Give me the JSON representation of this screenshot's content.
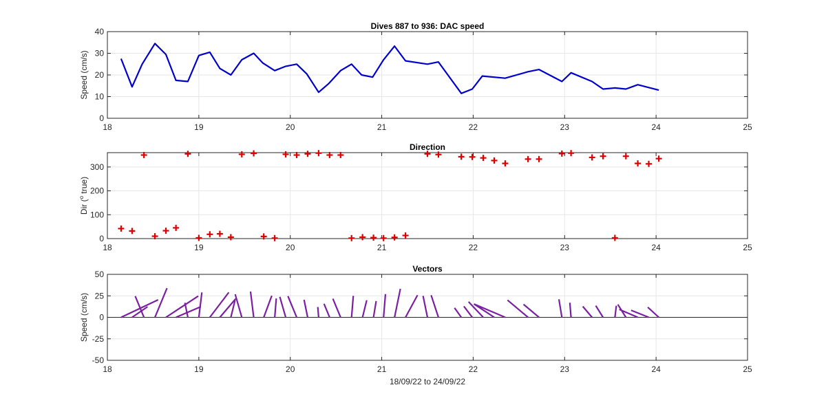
{
  "figure": {
    "xlabel": "18/09/22 to 24/09/22"
  },
  "colors": {
    "speed_line": "#0000cc",
    "direction_marker": "#dd0000",
    "vector": "#7b1fa2",
    "grid": "#e6e6e6",
    "axes": "#262626"
  },
  "chart_data": [
    {
      "type": "line",
      "title": "Dives 887 to 936: DAC speed",
      "xlabel": "",
      "ylabel": "Speed (cm/s)",
      "xlim": [
        18,
        25
      ],
      "ylim": [
        0,
        40
      ],
      "xticks": [
        18,
        19,
        20,
        21,
        22,
        23,
        24,
        25
      ],
      "yticks": [
        0,
        10,
        20,
        30,
        40
      ],
      "grid": true,
      "series": [
        {
          "x": [
            18.15,
            18.27,
            18.38,
            18.52,
            18.64,
            18.75,
            18.88,
            19.0,
            19.12,
            19.23,
            19.35,
            19.47,
            19.6,
            19.7,
            19.83,
            19.95,
            20.07,
            20.18,
            20.31,
            20.42,
            20.55,
            20.67,
            20.78,
            20.9,
            21.02,
            21.14,
            21.26,
            21.5,
            21.62,
            21.87,
            21.99,
            22.1,
            22.35,
            22.6,
            22.72,
            22.97,
            23.07,
            23.3,
            23.42,
            23.55,
            23.67,
            23.8,
            24.03
          ],
          "values": [
            27.5,
            14.5,
            25,
            34.5,
            29.5,
            17.5,
            17,
            29,
            30.5,
            23,
            20,
            27,
            30,
            25.5,
            22,
            24,
            25,
            20.5,
            12,
            16,
            22,
            25,
            20,
            19,
            27,
            33.3,
            26.5,
            25,
            26,
            11.5,
            13.5,
            19.5,
            18.5,
            21.5,
            22.5,
            17,
            21,
            17,
            13.5,
            14,
            13.5,
            15.5,
            13
          ]
        }
      ]
    },
    {
      "type": "scatter",
      "title": "Direction",
      "xlabel": "",
      "ylabel_prefix": "Dir (",
      "ylabel_sup": "o",
      "ylabel_suffix": " true)",
      "xlim": [
        18,
        25
      ],
      "ylim": [
        0,
        360
      ],
      "xticks": [
        18,
        19,
        20,
        21,
        22,
        23,
        24,
        25
      ],
      "yticks": [
        0,
        100,
        200,
        300
      ],
      "grid": true,
      "marker": "+",
      "series": [
        {
          "x": [
            18.15,
            18.27,
            18.4,
            18.52,
            18.64,
            18.75,
            18.88,
            19.0,
            19.12,
            19.23,
            19.35,
            19.47,
            19.6,
            19.71,
            19.83,
            19.95,
            20.07,
            20.19,
            20.31,
            20.43,
            20.55,
            20.67,
            20.79,
            20.91,
            21.02,
            21.14,
            21.26,
            21.5,
            21.62,
            21.87,
            21.99,
            22.11,
            22.23,
            22.35,
            22.6,
            22.72,
            22.97,
            23.07,
            23.3,
            23.42,
            23.55,
            23.67,
            23.8,
            23.92,
            24.03
          ],
          "values": [
            42,
            32,
            350,
            10,
            33,
            45,
            355,
            3,
            18,
            20,
            6,
            353,
            357,
            9,
            2,
            353,
            350,
            355,
            358,
            350,
            350,
            2,
            6,
            4,
            2,
            5,
            13,
            355,
            352,
            343,
            342,
            338,
            327,
            315,
            333,
            333,
            356,
            358,
            340,
            345,
            3,
            345,
            315,
            313,
            335
          ]
        }
      ]
    },
    {
      "type": "vector",
      "title": "Vectors",
      "xlabel": "18/09/22 to 24/09/22",
      "ylabel": "Speed (cm/s)",
      "xlim": [
        18,
        25
      ],
      "ylim": [
        -50,
        50
      ],
      "xticks": [
        18,
        19,
        20,
        21,
        22,
        23,
        24,
        25
      ],
      "yticks": [
        -50,
        -25,
        0,
        25,
        50
      ],
      "grid": true,
      "note_units": "stick origin at day value; stick components derived from speed and direction",
      "series": [
        {
          "x": [
            18.15,
            18.27,
            18.4,
            18.52,
            18.64,
            18.75,
            18.88,
            19.0,
            19.12,
            19.23,
            19.35,
            19.47,
            19.6,
            19.71,
            19.83,
            19.95,
            20.07,
            20.19,
            20.31,
            20.43,
            20.55,
            20.67,
            20.79,
            20.91,
            21.02,
            21.14,
            21.26,
            21.5,
            21.62,
            21.87,
            21.99,
            22.11,
            22.23,
            22.35,
            22.6,
            22.72,
            22.97,
            23.07,
            23.3,
            23.42,
            23.55,
            23.67,
            23.8,
            23.92,
            24.03
          ],
          "speed": [
            27.5,
            14.5,
            25,
            34.5,
            29.5,
            17.5,
            17,
            29,
            30.5,
            23,
            20,
            27,
            30,
            25.5,
            22,
            24,
            25,
            20.5,
            12,
            16,
            22,
            25,
            20,
            19,
            27,
            33.3,
            26.5,
            25,
            26,
            11.5,
            13.5,
            19.5,
            18.5,
            21.5,
            22.5,
            17,
            21,
            17,
            13.5,
            14,
            13.5,
            15.5,
            13,
            12,
            13
          ],
          "direction": [
            42,
            32,
            350,
            10,
            33,
            45,
            355,
            3,
            18,
            20,
            6,
            353,
            357,
            9,
            2,
            353,
            350,
            355,
            358,
            350,
            350,
            2,
            6,
            4,
            2,
            5,
            13,
            355,
            352,
            343,
            342,
            338,
            327,
            315,
            333,
            333,
            356,
            358,
            340,
            345,
            3,
            345,
            315,
            313,
            335
          ]
        }
      ]
    }
  ]
}
